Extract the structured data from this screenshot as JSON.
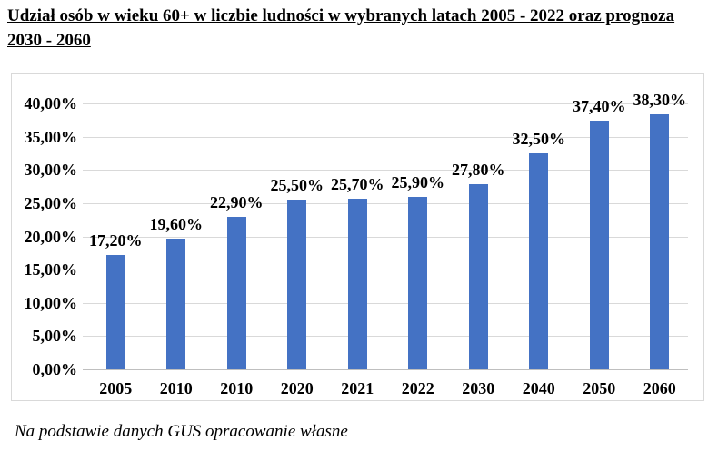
{
  "title": {
    "line1": "Udział osób w wieku 60+ w liczbie ludności w wybranych latach 2005 - 2022 oraz prognoza",
    "line2": "2030 - 2060"
  },
  "footer": {
    "text": "Na podstawie danych GUS opracowanie własne"
  },
  "chart_data": {
    "type": "bar",
    "title": "Udział osób w wieku 60+ w liczbie ludności w wybranych latach 2005 - 2022 oraz prognoza 2030 - 2060",
    "categories": [
      "2005",
      "2010",
      "2010",
      "2020",
      "2021",
      "2022",
      "2030",
      "2040",
      "2050",
      "2060"
    ],
    "values": [
      17.2,
      19.6,
      22.9,
      25.5,
      25.7,
      25.9,
      27.8,
      32.5,
      37.4,
      38.3
    ],
    "value_labels": [
      "17,20%",
      "19,60%",
      "22,90%",
      "25,50%",
      "25,70%",
      "25,90%",
      "27,80%",
      "32,50%",
      "37,40%",
      "38,30%"
    ],
    "y_ticks": [
      "40,00%",
      "35,00%",
      "30,00%",
      "25,00%",
      "20,00%",
      "15,00%",
      "10,00%",
      "5,00%",
      "0,00%"
    ],
    "xlabel": "",
    "ylabel": "",
    "ylim": [
      0,
      40
    ],
    "y_tick_step": 5,
    "grid": true,
    "legend": "none",
    "bar_color": "#4472C4",
    "gridline_color": "#D9D9D9",
    "axis_line_color": "#BFBFBF",
    "frame_border_color": "#D9D9D9",
    "source_note": "Na podstawie danych GUS opracowanie własne"
  }
}
